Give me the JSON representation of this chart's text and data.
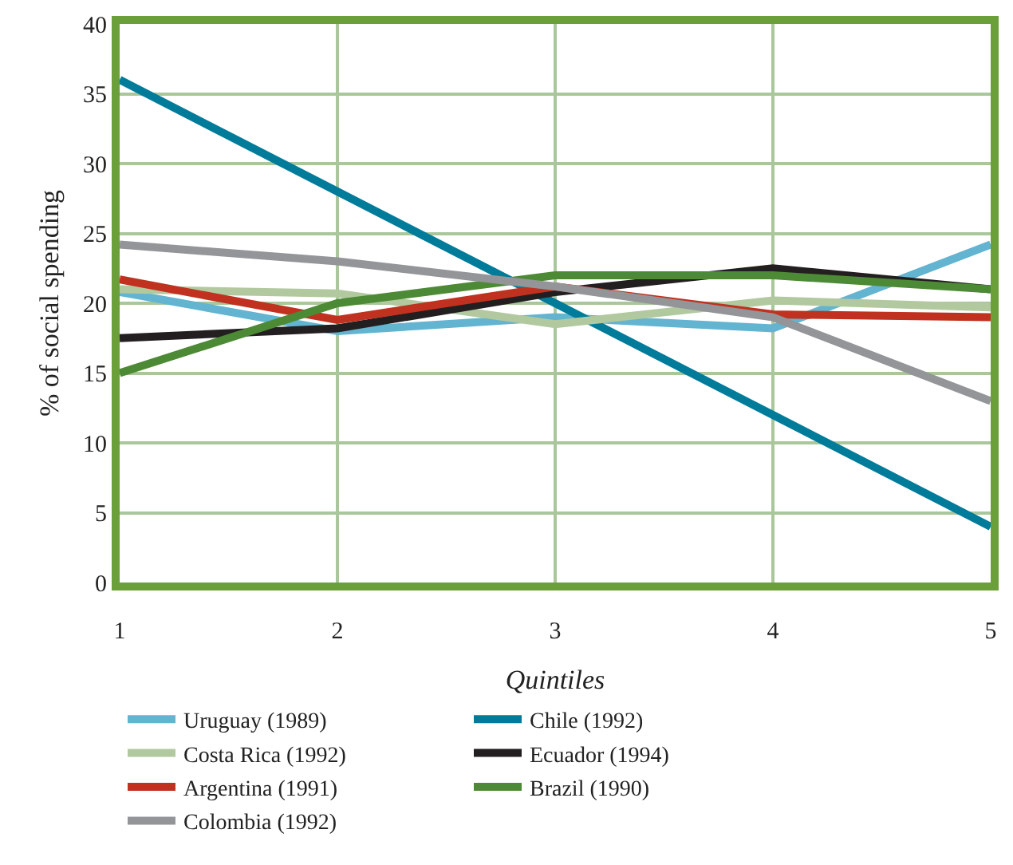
{
  "chart_data": {
    "type": "line",
    "xlabel": "Quintiles",
    "ylabel": "% of social spending",
    "x": [
      1,
      2,
      3,
      4,
      5
    ],
    "xlim": [
      1,
      5
    ],
    "xticks": [
      1,
      2,
      3,
      4,
      5
    ],
    "ylim": [
      0,
      40
    ],
    "yticks": [
      0,
      5,
      10,
      15,
      20,
      25,
      30,
      35,
      40
    ],
    "grid": true,
    "legend": "bottom",
    "marker": "none",
    "line_style": "solid",
    "series": [
      {
        "name": "Uruguay (1989)",
        "color": "#62b4d0",
        "values": [
          20.8,
          18,
          19,
          18.2,
          24.2
        ]
      },
      {
        "name": "Chile (1992)",
        "color": "#007b9a",
        "values": [
          36,
          28,
          20,
          12,
          4
        ]
      },
      {
        "name": "Costa Rica (1992)",
        "color": "#b2c9a0",
        "values": [
          21,
          20.7,
          18.5,
          20.2,
          19.7
        ]
      },
      {
        "name": "Ecuador (1994)",
        "color": "#231f20",
        "values": [
          17.5,
          18.2,
          20.8,
          22.5,
          21
        ]
      },
      {
        "name": "Argentina (1991)",
        "color": "#c0311f",
        "values": [
          21.7,
          18.8,
          21.2,
          19.2,
          19
        ]
      },
      {
        "name": "Brazil (1990)",
        "color": "#4d8a35",
        "values": [
          15,
          20,
          22,
          22,
          21
        ]
      },
      {
        "name": "Colombia (1992)",
        "color": "#939598",
        "values": [
          24.2,
          23,
          21.2,
          19,
          13
        ]
      }
    ]
  }
}
